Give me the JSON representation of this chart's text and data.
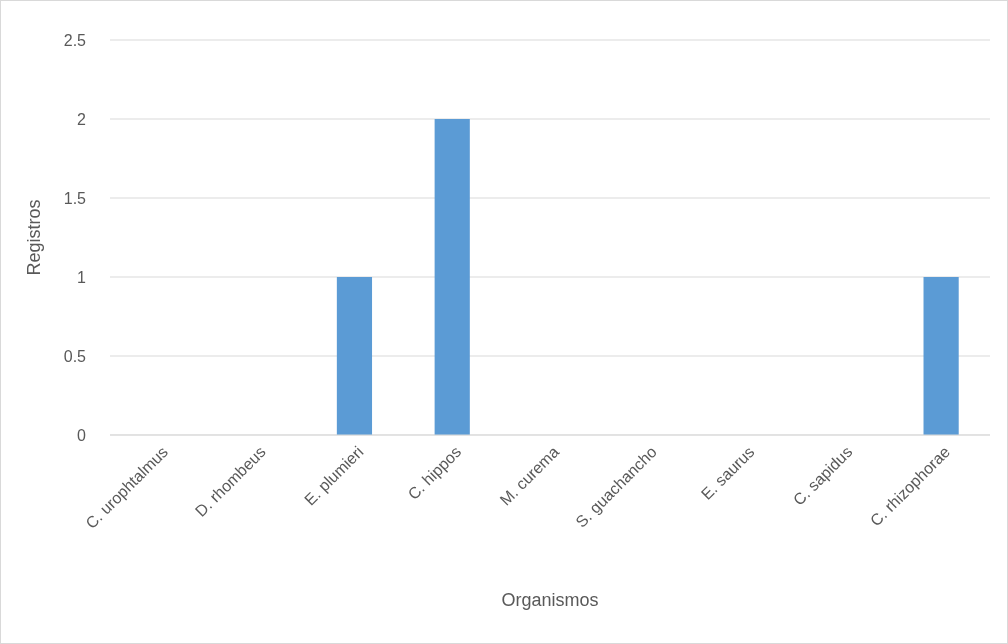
{
  "chart_data": {
    "type": "bar",
    "xlabel": "Organismos",
    "ylabel": "Registros",
    "categories": [
      "C. urophtalmus",
      "D. rhombeus",
      "E. plumieri",
      "C. hippos",
      "M. curema",
      "S. guachancho",
      "E. saurus",
      "C. sapidus",
      "C. rhizophorae"
    ],
    "values": [
      0,
      0,
      1,
      2,
      0,
      0,
      0,
      0,
      1
    ],
    "color": "#5b9bd5",
    "ylim": [
      0,
      2.5
    ],
    "yticks": [
      0,
      0.5,
      1,
      1.5,
      2,
      2.5
    ],
    "grid": "y"
  }
}
